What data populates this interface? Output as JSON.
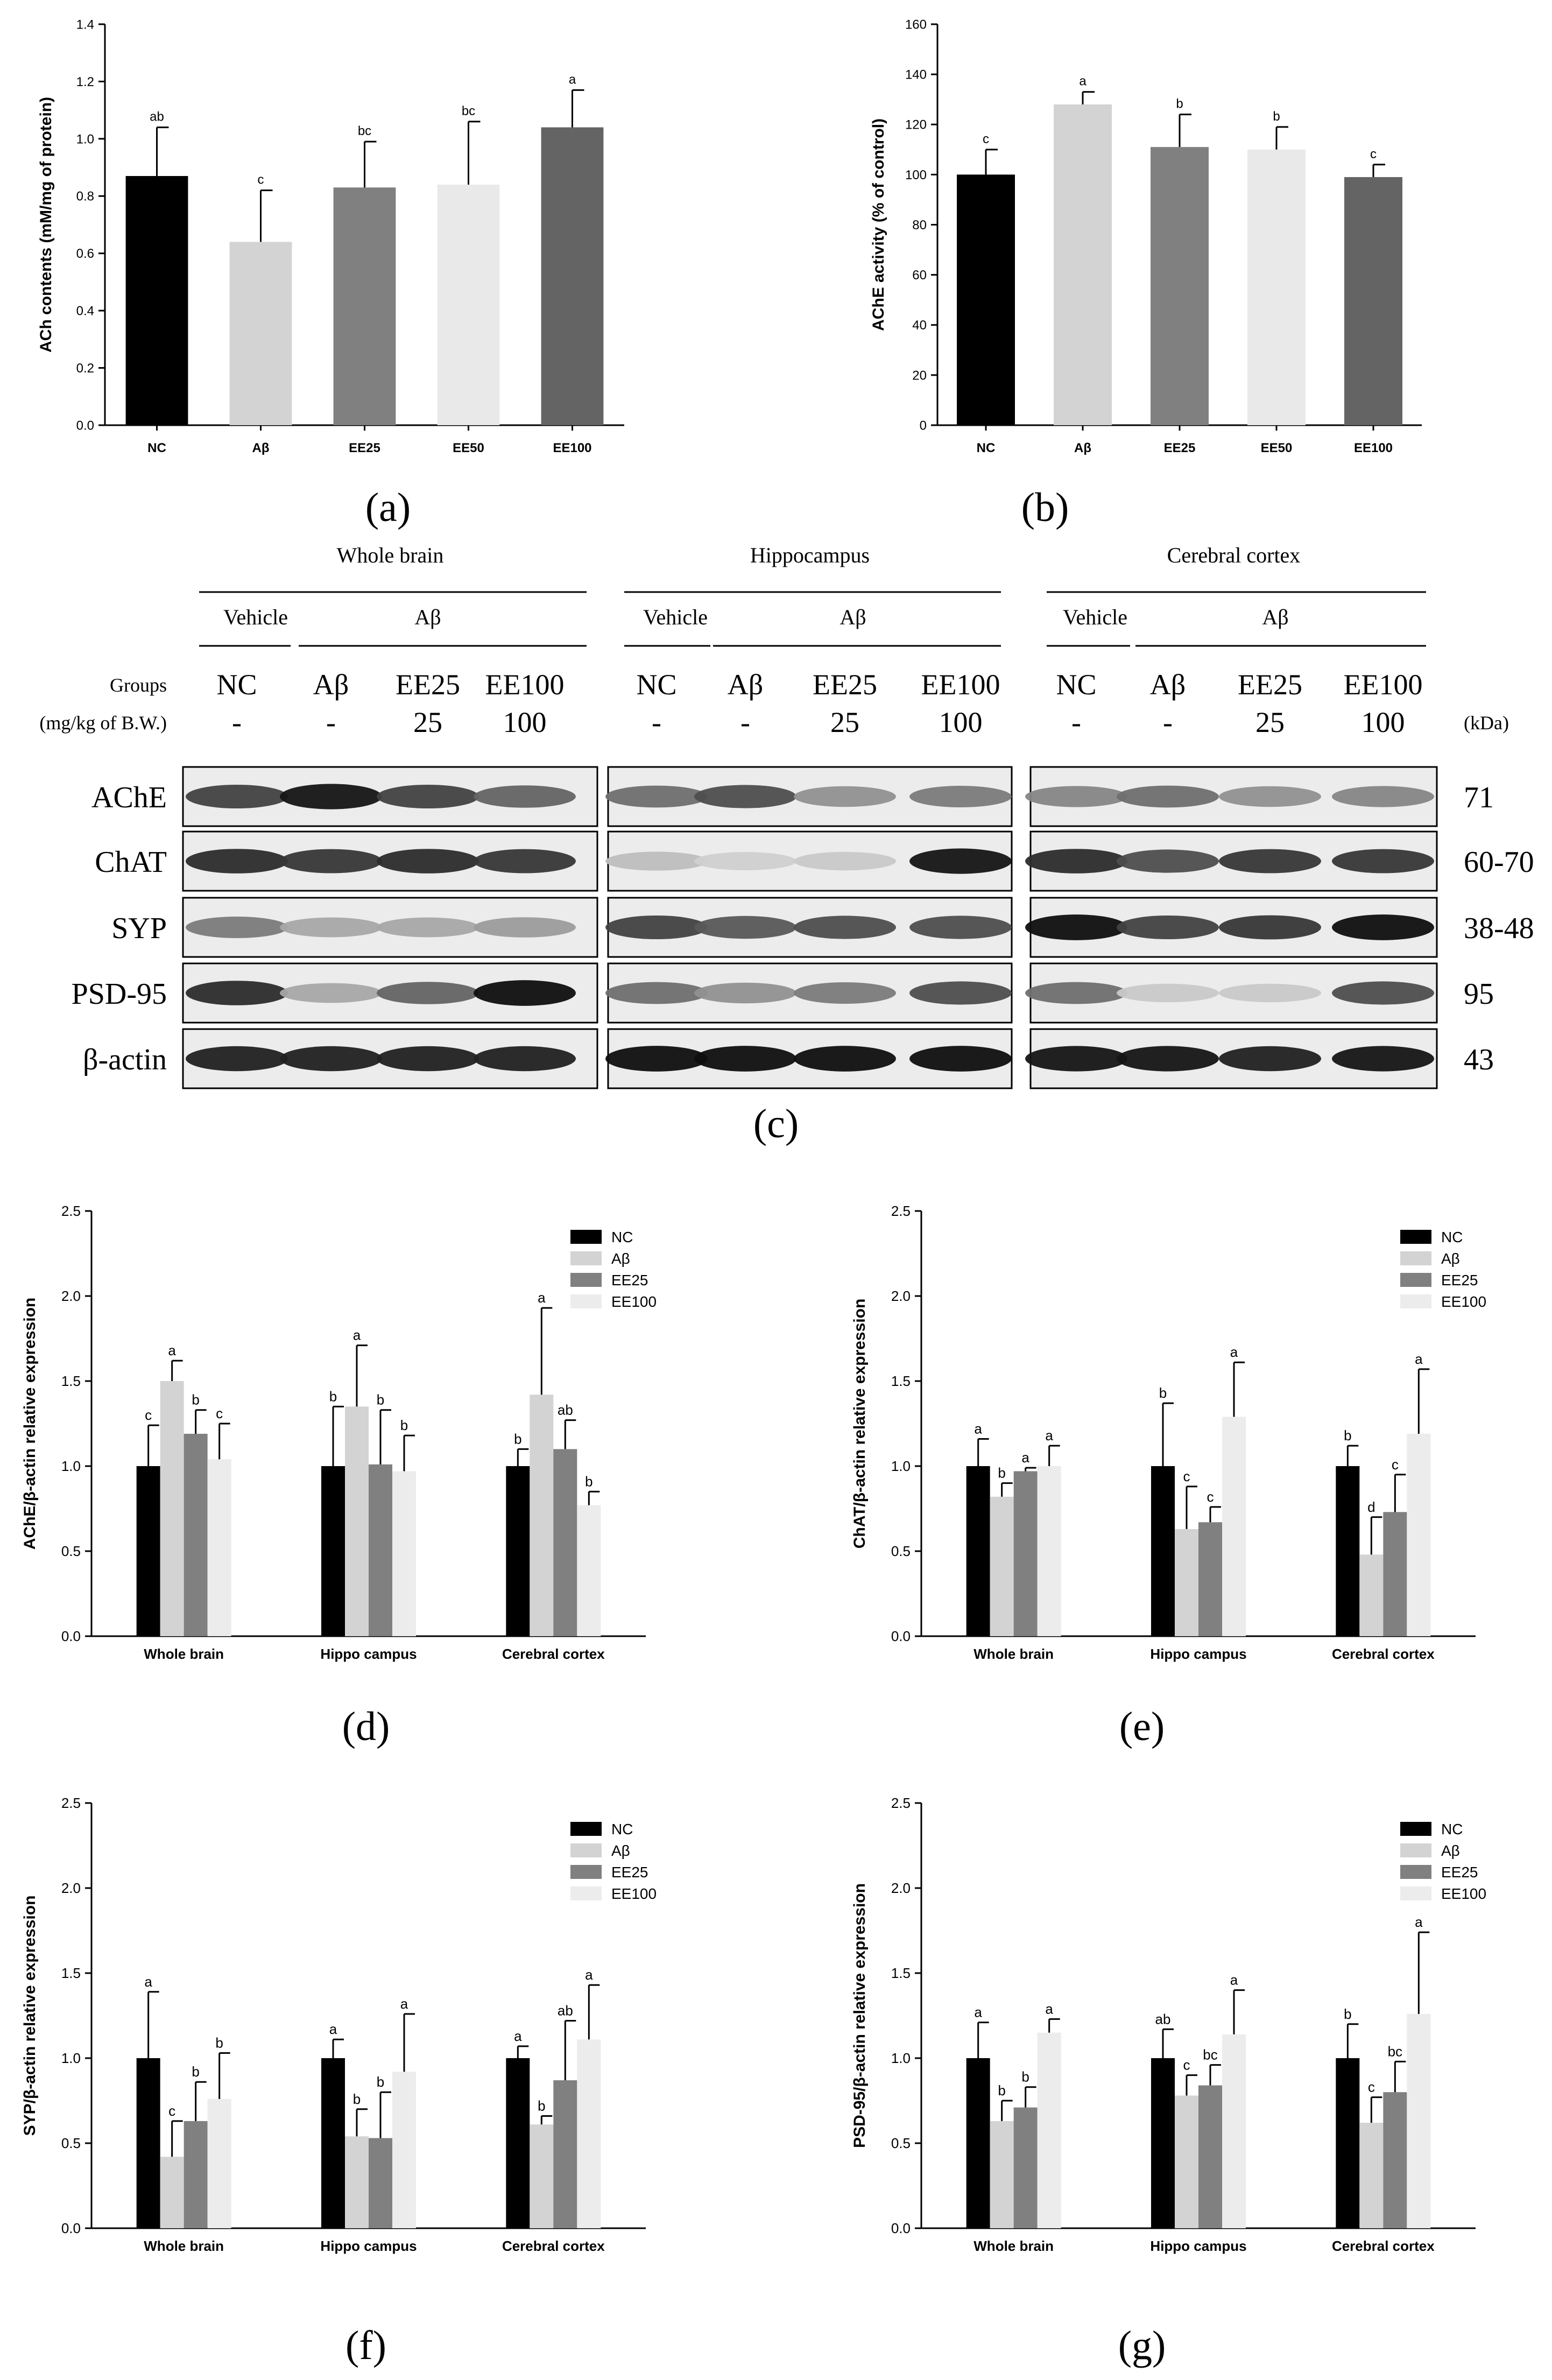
{
  "panel_labels": {
    "a": "(a)",
    "b": "(b)",
    "c": "(c)",
    "d": "(d)",
    "e": "(e)",
    "f": "(f)",
    "g": "(g)"
  },
  "colors": {
    "NC": "#000000",
    "Ab": "#d3d3d3",
    "EE25": "#808080",
    "EE50": "#e9e9e9",
    "EE100": "#646464",
    "EE100_light": "#ececec"
  },
  "chart_data": [
    {
      "id": "a",
      "type": "bar",
      "categories": [
        "NC",
        "Aβ",
        "EE25",
        "EE50",
        "EE100"
      ],
      "values": [
        0.87,
        0.64,
        0.83,
        0.84,
        1.04
      ],
      "errors": [
        0.17,
        0.18,
        0.16,
        0.22,
        0.13
      ],
      "letters": [
        "ab",
        "c",
        "bc",
        "bc",
        "a"
      ],
      "ylabel": "ACh contents (mM/mg of protein)",
      "ylim": [
        0,
        1.4
      ],
      "yticks": [
        0.0,
        0.2,
        0.4,
        0.6,
        0.8,
        1.0,
        1.2,
        1.4
      ],
      "ytick_labels": [
        "0.0",
        "0.2",
        "0.4",
        "0.6",
        "0.8",
        "1.0",
        "1.2",
        "1.4"
      ],
      "colors": [
        "#000000",
        "#d3d3d3",
        "#808080",
        "#e9e9e9",
        "#646464"
      ]
    },
    {
      "id": "b",
      "type": "bar",
      "categories": [
        "NC",
        "Aβ",
        "EE25",
        "EE50",
        "EE100"
      ],
      "values": [
        100,
        128,
        111,
        110,
        99
      ],
      "errors": [
        10,
        5,
        13,
        9,
        5
      ],
      "letters": [
        "c",
        "a",
        "b",
        "b",
        "c"
      ],
      "ylabel": "AChE activity (% of control)",
      "ylim": [
        0,
        160
      ],
      "yticks": [
        0,
        20,
        40,
        60,
        80,
        100,
        120,
        140,
        160
      ],
      "ytick_labels": [
        "0",
        "20",
        "40",
        "60",
        "80",
        "100",
        "120",
        "140",
        "160"
      ],
      "colors": [
        "#000000",
        "#d3d3d3",
        "#808080",
        "#e9e9e9",
        "#646464"
      ]
    },
    {
      "id": "d",
      "type": "bar",
      "categories": [
        "Whole brain",
        "Hippo campus",
        "Cerebral cortex"
      ],
      "series": [
        {
          "name": "NC",
          "values": [
            1.0,
            1.0,
            1.0
          ],
          "errors": [
            0.24,
            0.35,
            0.1
          ],
          "letters": [
            "c",
            "b",
            "b"
          ]
        },
        {
          "name": "Aβ",
          "values": [
            1.5,
            1.35,
            1.42
          ],
          "errors": [
            0.12,
            0.36,
            0.51
          ],
          "letters": [
            "a",
            "a",
            "a"
          ]
        },
        {
          "name": "EE25",
          "values": [
            1.19,
            1.01,
            1.1
          ],
          "errors": [
            0.14,
            0.32,
            0.17
          ],
          "letters": [
            "b",
            "b",
            "ab"
          ]
        },
        {
          "name": "EE100",
          "values": [
            1.04,
            0.97,
            0.77
          ],
          "errors": [
            0.21,
            0.21,
            0.08
          ],
          "letters": [
            "c",
            "b",
            "b"
          ]
        }
      ],
      "ylabel": "AChE/β-actin relative expression",
      "ylim": [
        0,
        2.5
      ],
      "yticks": [
        0,
        0.5,
        1.0,
        1.5,
        2.0,
        2.5
      ],
      "ytick_labels": [
        "0.0",
        "0.5",
        "1.0",
        "1.5",
        "2.0",
        "2.5"
      ],
      "colors": [
        "#000000",
        "#d3d3d3",
        "#808080",
        "#ececec"
      ],
      "legend": "top-right"
    },
    {
      "id": "e",
      "type": "bar",
      "categories": [
        "Whole brain",
        "Hippo campus",
        "Cerebral cortex"
      ],
      "series": [
        {
          "name": "NC",
          "values": [
            1.0,
            1.0,
            1.0
          ],
          "errors": [
            0.16,
            0.37,
            0.12
          ],
          "letters": [
            "a",
            "b",
            "b"
          ]
        },
        {
          "name": "Aβ",
          "values": [
            0.82,
            0.63,
            0.48
          ],
          "errors": [
            0.08,
            0.25,
            0.22
          ],
          "letters": [
            "b",
            "c",
            "d"
          ]
        },
        {
          "name": "EE25",
          "values": [
            0.97,
            0.67,
            0.73
          ],
          "errors": [
            0.02,
            0.09,
            0.22
          ],
          "letters": [
            "a",
            "c",
            "c"
          ]
        },
        {
          "name": "EE100",
          "values": [
            1.0,
            1.29,
            1.19
          ],
          "errors": [
            0.12,
            0.32,
            0.38
          ],
          "letters": [
            "a",
            "a",
            "a"
          ]
        }
      ],
      "ylabel": "ChAT/β-actin relative expression",
      "ylim": [
        0,
        2.5
      ],
      "yticks": [
        0,
        0.5,
        1.0,
        1.5,
        2.0,
        2.5
      ],
      "ytick_labels": [
        "0.0",
        "0.5",
        "1.0",
        "1.5",
        "2.0",
        "2.5"
      ],
      "colors": [
        "#000000",
        "#d3d3d3",
        "#808080",
        "#ececec"
      ],
      "legend": "top-right"
    },
    {
      "id": "f",
      "type": "bar",
      "categories": [
        "Whole brain",
        "Hippo campus",
        "Cerebral cortex"
      ],
      "series": [
        {
          "name": "NC",
          "values": [
            1.0,
            1.0,
            1.0
          ],
          "errors": [
            0.39,
            0.11,
            0.07
          ],
          "letters": [
            "a",
            "a",
            "a"
          ]
        },
        {
          "name": "Aβ",
          "values": [
            0.42,
            0.54,
            0.61
          ],
          "errors": [
            0.21,
            0.16,
            0.05
          ],
          "letters": [
            "c",
            "b",
            "b"
          ]
        },
        {
          "name": "EE25",
          "values": [
            0.63,
            0.53,
            0.87
          ],
          "errors": [
            0.23,
            0.27,
            0.35
          ],
          "letters": [
            "b",
            "b",
            "ab"
          ]
        },
        {
          "name": "EE100",
          "values": [
            0.76,
            0.92,
            1.11
          ],
          "errors": [
            0.27,
            0.34,
            0.32
          ],
          "letters": [
            "b",
            "a",
            "a"
          ]
        }
      ],
      "ylabel": "SYP/β-actin relative expression",
      "ylim": [
        0,
        2.5
      ],
      "yticks": [
        0,
        0.5,
        1.0,
        1.5,
        2.0,
        2.5
      ],
      "ytick_labels": [
        "0.0",
        "0.5",
        "1.0",
        "1.5",
        "2.0",
        "2.5"
      ],
      "colors": [
        "#000000",
        "#d3d3d3",
        "#808080",
        "#ececec"
      ],
      "legend": "top-right"
    },
    {
      "id": "g",
      "type": "bar",
      "categories": [
        "Whole brain",
        "Hippo campus",
        "Cerebral cortex"
      ],
      "series": [
        {
          "name": "NC",
          "values": [
            1.0,
            1.0,
            1.0
          ],
          "errors": [
            0.21,
            0.17,
            0.2
          ],
          "letters": [
            "a",
            "ab",
            "b"
          ]
        },
        {
          "name": "Aβ",
          "values": [
            0.63,
            0.78,
            0.62
          ],
          "errors": [
            0.12,
            0.12,
            0.15
          ],
          "letters": [
            "b",
            "c",
            "c"
          ]
        },
        {
          "name": "EE25",
          "values": [
            0.71,
            0.84,
            0.8
          ],
          "errors": [
            0.12,
            0.12,
            0.18
          ],
          "letters": [
            "b",
            "bc",
            "bc"
          ]
        },
        {
          "name": "EE100",
          "values": [
            1.15,
            1.14,
            1.26
          ],
          "errors": [
            0.08,
            0.26,
            0.48
          ],
          "letters": [
            "a",
            "a",
            "a"
          ]
        }
      ],
      "ylabel": "PSD-95/β-actin relative expression",
      "ylim": [
        0,
        2.5
      ],
      "yticks": [
        0,
        0.5,
        1.0,
        1.5,
        2.0,
        2.5
      ],
      "ytick_labels": [
        "0.0",
        "0.5",
        "1.0",
        "1.5",
        "2.0",
        "2.5"
      ],
      "colors": [
        "#000000",
        "#d3d3d3",
        "#808080",
        "#ececec"
      ],
      "legend": "top-right"
    }
  ],
  "blot": {
    "regions": [
      "Whole brain",
      "Hippocampus",
      "Cerebral cortex"
    ],
    "vehicle_label": "Vehicle",
    "ab_label": "Aβ",
    "groups_label": "Groups",
    "dose_label": "(mg/kg of B.W.)",
    "kda_label": "(kDa)",
    "groups": [
      "NC",
      "Aβ",
      "EE25",
      "EE100"
    ],
    "doses": [
      "-",
      "-",
      "25",
      "100"
    ],
    "proteins": [
      {
        "name": "AChE",
        "kda": "71",
        "intensity": [
          [
            0.75,
            0.95,
            0.75,
            0.6
          ],
          [
            0.55,
            0.7,
            0.4,
            0.5
          ],
          [
            0.45,
            0.55,
            0.4,
            0.45
          ]
        ]
      },
      {
        "name": "ChAT",
        "kda": "60-70",
        "intensity": [
          [
            0.85,
            0.8,
            0.85,
            0.8
          ],
          [
            0.2,
            0.12,
            0.15,
            0.95
          ],
          [
            0.85,
            0.7,
            0.8,
            0.8
          ]
        ]
      },
      {
        "name": "SYP",
        "kda": "38-48",
        "intensity": [
          [
            0.5,
            0.3,
            0.3,
            0.35
          ],
          [
            0.75,
            0.65,
            0.7,
            0.7
          ],
          [
            0.98,
            0.75,
            0.8,
            0.98
          ]
        ]
      },
      {
        "name": "PSD-95",
        "kda": "95",
        "intensity": [
          [
            0.85,
            0.3,
            0.6,
            0.98
          ],
          [
            0.55,
            0.4,
            0.5,
            0.7
          ],
          [
            0.55,
            0.15,
            0.15,
            0.7
          ]
        ]
      },
      {
        "name": "β-actin",
        "kda": "43",
        "intensity": [
          [
            0.9,
            0.9,
            0.9,
            0.9
          ],
          [
            0.98,
            0.98,
            0.98,
            0.98
          ],
          [
            0.95,
            0.95,
            0.9,
            0.95
          ]
        ]
      }
    ]
  }
}
